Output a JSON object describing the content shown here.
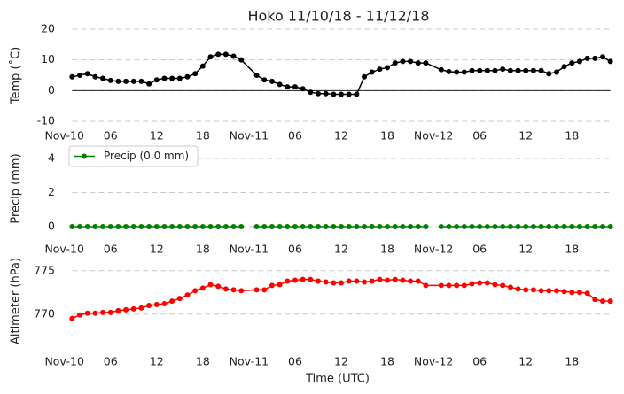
{
  "chart_data": [
    {
      "type": "line",
      "title": "Hoko 11/10/18 - 11/12/18",
      "ylabel": "Temp (˚C)",
      "color": "#000000",
      "zero_line": true,
      "grid": true,
      "x": [
        1,
        2,
        3,
        4,
        5,
        6,
        7,
        8,
        9,
        10,
        11,
        12,
        13,
        14,
        15,
        16,
        17,
        18,
        19,
        20,
        21,
        22,
        23,
        25,
        26,
        27,
        28,
        29,
        30,
        31,
        32,
        33,
        34,
        35,
        36,
        37,
        38,
        39,
        40,
        41,
        42,
        43,
        44,
        45,
        46,
        47,
        49,
        50,
        51,
        52,
        53,
        54,
        55,
        56,
        57,
        58,
        59,
        60,
        61,
        62,
        63,
        64,
        65,
        66,
        67,
        68,
        69,
        70,
        71
      ],
      "values": [
        4.5,
        5,
        5.5,
        4.5,
        4,
        3.3,
        3,
        3,
        3,
        3,
        2.2,
        3.5,
        4,
        4,
        4,
        4.5,
        5.5,
        8,
        11,
        11.8,
        11.8,
        11.2,
        10,
        5,
        3.5,
        3,
        2,
        1.2,
        1.2,
        0.6,
        -0.5,
        -1,
        -1,
        -1.2,
        -1.2,
        -1.2,
        -1.2,
        4.5,
        6,
        7,
        7.5,
        9,
        9.5,
        9.5,
        9,
        9,
        6.8,
        6.2,
        6,
        6,
        6.5,
        6.5,
        6.5,
        6.5,
        7,
        6.5,
        6.5,
        6.5,
        6.5,
        6.5,
        5.5,
        6,
        7.8,
        9,
        9.5,
        10.5,
        10.5,
        11,
        9.5
      ],
      "xlim": [
        -2.5,
        71.5
      ],
      "ylim": [
        -10,
        20
      ],
      "yticks": [
        -10,
        0,
        10,
        20
      ],
      "xticks": [
        {
          "value": 0,
          "label": "Nov-10"
        },
        {
          "value": 6,
          "label": "06"
        },
        {
          "value": 12,
          "label": "12"
        },
        {
          "value": 18,
          "label": "18"
        },
        {
          "value": 24,
          "label": "Nov-11"
        },
        {
          "value": 30,
          "label": "06"
        },
        {
          "value": 36,
          "label": "12"
        },
        {
          "value": 42,
          "label": "18"
        },
        {
          "value": 48,
          "label": "Nov-12"
        },
        {
          "value": 54,
          "label": "06"
        },
        {
          "value": 60,
          "label": "12"
        },
        {
          "value": 66,
          "label": "18"
        }
      ]
    },
    {
      "type": "line",
      "ylabel": "Precip (mm)",
      "grid": true,
      "legend": "upper left",
      "x": [
        1,
        2,
        3,
        4,
        5,
        6,
        7,
        8,
        9,
        10,
        11,
        12,
        13,
        14,
        15,
        16,
        17,
        18,
        19,
        20,
        21,
        22,
        23,
        24,
        25,
        26,
        27,
        28,
        29,
        30,
        31,
        32,
        33,
        34,
        35,
        36,
        37,
        38,
        39,
        40,
        41,
        42,
        43,
        44,
        45,
        46,
        47,
        48,
        49,
        50,
        51,
        52,
        53,
        54,
        55,
        56,
        57,
        58,
        59,
        60,
        61,
        62,
        63,
        64,
        65,
        66,
        67,
        68,
        69,
        70,
        71
      ],
      "series": [
        {
          "name": "Precip (0.0 mm)",
          "color": "#008000",
          "values": [
            0,
            0,
            0,
            0,
            0,
            0,
            0,
            0,
            0,
            0,
            0,
            0,
            0,
            0,
            0,
            0,
            0,
            0,
            0,
            0,
            0,
            0,
            0,
            null,
            0,
            0,
            0,
            0,
            0,
            0,
            0,
            0,
            0,
            0,
            0,
            0,
            0,
            0,
            0,
            0,
            0,
            0,
            0,
            0,
            0,
            0,
            0,
            null,
            0,
            0,
            0,
            0,
            0,
            0,
            0,
            0,
            0,
            0,
            0,
            0,
            0,
            0,
            0,
            0,
            0,
            0,
            0,
            0,
            0,
            0,
            0
          ]
        }
      ],
      "xlim": [
        -2.5,
        71.5
      ],
      "ylim": [
        -0.6,
        4.6
      ],
      "yticks": [
        0,
        2,
        4
      ],
      "xticks": [
        {
          "value": 0,
          "label": "Nov-10"
        },
        {
          "value": 6,
          "label": "06"
        },
        {
          "value": 12,
          "label": "12"
        },
        {
          "value": 18,
          "label": "18"
        },
        {
          "value": 24,
          "label": "Nov-11"
        },
        {
          "value": 30,
          "label": "06"
        },
        {
          "value": 36,
          "label": "12"
        },
        {
          "value": 42,
          "label": "18"
        },
        {
          "value": 48,
          "label": "Nov-12"
        },
        {
          "value": 54,
          "label": "06"
        },
        {
          "value": 60,
          "label": "12"
        },
        {
          "value": 66,
          "label": "18"
        }
      ]
    },
    {
      "type": "line",
      "ylabel": "Altimeter (hPa)",
      "xlabel": "Time (UTC)",
      "color": "#ff0000",
      "grid": true,
      "x": [
        1,
        2,
        3,
        4,
        5,
        6,
        7,
        8,
        9,
        10,
        11,
        12,
        13,
        14,
        15,
        16,
        17,
        18,
        19,
        20,
        21,
        22,
        23,
        25,
        26,
        27,
        28,
        29,
        30,
        31,
        32,
        33,
        34,
        35,
        36,
        37,
        38,
        39,
        40,
        41,
        42,
        43,
        44,
        45,
        46,
        47,
        49,
        50,
        51,
        52,
        53,
        54,
        55,
        56,
        57,
        58,
        59,
        60,
        61,
        62,
        63,
        64,
        65,
        66,
        67,
        68,
        69,
        70,
        71
      ],
      "values": [
        769.5,
        769.9,
        770.1,
        770.1,
        770.2,
        770.2,
        770.4,
        770.5,
        770.6,
        770.7,
        771,
        771.1,
        771.2,
        771.5,
        771.8,
        772.2,
        772.7,
        773,
        773.4,
        773.2,
        772.9,
        772.8,
        772.7,
        772.8,
        772.8,
        773.3,
        773.4,
        773.8,
        773.9,
        774,
        774,
        773.8,
        773.7,
        773.6,
        773.6,
        773.8,
        773.8,
        773.7,
        773.8,
        774,
        773.9,
        774,
        773.9,
        773.8,
        773.8,
        773.3,
        773.3,
        773.3,
        773.3,
        773.3,
        773.5,
        773.6,
        773.6,
        773.4,
        773.3,
        773.1,
        772.9,
        772.8,
        772.8,
        772.7,
        772.7,
        772.7,
        772.6,
        772.5,
        772.5,
        772.4,
        771.7,
        771.5,
        771.5
      ],
      "xlim": [
        -2.5,
        71.5
      ],
      "ylim": [
        766,
        776.2
      ],
      "yticks": [
        770,
        775
      ],
      "xticks": [
        {
          "value": 0,
          "label": "Nov-10"
        },
        {
          "value": 6,
          "label": "06"
        },
        {
          "value": 12,
          "label": "12"
        },
        {
          "value": 18,
          "label": "18"
        },
        {
          "value": 24,
          "label": "Nov-11"
        },
        {
          "value": 30,
          "label": "06"
        },
        {
          "value": 36,
          "label": "12"
        },
        {
          "value": 42,
          "label": "18"
        },
        {
          "value": 48,
          "label": "Nov-12"
        },
        {
          "value": 54,
          "label": "06"
        },
        {
          "value": 60,
          "label": "12"
        },
        {
          "value": 66,
          "label": "18"
        }
      ]
    }
  ]
}
